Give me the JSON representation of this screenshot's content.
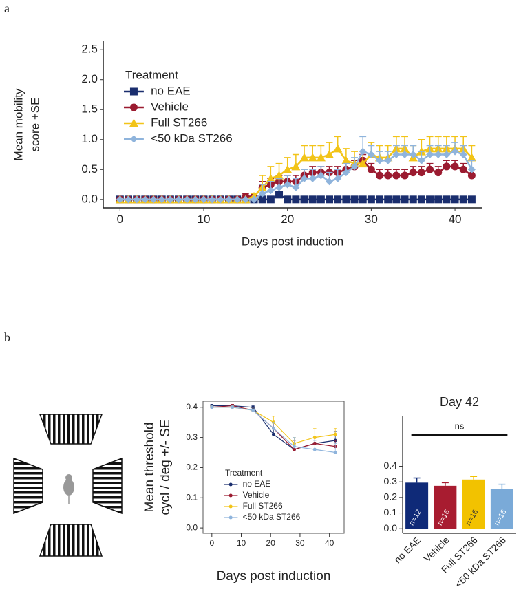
{
  "panel_labels": [
    "a",
    "b"
  ],
  "chart_data": [
    {
      "type": "line",
      "ylabel": [
        "Mean mobility",
        "score +SE"
      ],
      "xlabel": "Days post induction",
      "legend_title": "Treatment",
      "legend": "upper left",
      "grid": false,
      "xlim": [
        -2,
        43.2
      ],
      "ylim": [
        -0.14,
        2.64
      ],
      "xticks": [
        0,
        10,
        20,
        30,
        40
      ],
      "yticks": [
        {
          "value": 0,
          "label": "0.0"
        },
        {
          "value": 0.5,
          "label": "0.5"
        },
        {
          "value": 1,
          "label": "1.0"
        },
        {
          "value": 1.5,
          "label": "1.5"
        },
        {
          "value": 2,
          "label": "2.0"
        },
        {
          "value": 2.5,
          "label": "2.5"
        }
      ],
      "x": [
        0,
        1,
        2,
        3,
        4,
        5,
        6,
        7,
        8,
        9,
        10,
        11,
        12,
        13,
        14,
        15,
        16,
        17,
        18,
        19,
        20,
        21,
        22,
        23,
        24,
        25,
        26,
        27,
        28,
        29,
        30,
        31,
        32,
        33,
        34,
        35,
        36,
        37,
        38,
        39,
        40,
        41,
        42
      ],
      "series": [
        {
          "name": "no EAE",
          "color": "#1a2e6e",
          "marker": "square",
          "values": [
            0,
            0,
            0,
            0,
            0,
            0,
            0,
            0,
            0,
            0,
            0,
            0,
            0,
            0,
            0,
            0,
            0,
            0,
            0,
            0.08,
            0,
            0,
            0,
            0,
            0,
            0,
            0,
            0,
            0,
            0,
            0,
            0,
            0,
            0,
            0,
            0,
            0,
            0,
            0,
            0,
            0,
            0,
            0
          ],
          "errors": [
            0,
            0,
            0,
            0,
            0,
            0,
            0,
            0,
            0,
            0,
            0,
            0,
            0,
            0,
            0,
            0,
            0,
            0,
            0,
            0.05,
            0,
            0,
            0,
            0,
            0,
            0,
            0,
            0,
            0,
            0,
            0,
            0,
            0,
            0,
            0,
            0,
            0,
            0,
            0,
            0,
            0,
            0,
            0
          ]
        },
        {
          "name": "Vehicle",
          "color": "#9b1b30",
          "marker": "circle",
          "values": [
            0,
            0,
            0,
            0,
            0,
            0,
            0,
            0,
            0,
            0,
            0,
            0,
            0,
            0,
            0,
            0.05,
            0.05,
            0.2,
            0.25,
            0.3,
            0.3,
            0.3,
            0.4,
            0.45,
            0.45,
            0.45,
            0.45,
            0.5,
            0.55,
            0.65,
            0.5,
            0.4,
            0.4,
            0.4,
            0.4,
            0.45,
            0.45,
            0.5,
            0.45,
            0.55,
            0.55,
            0.5,
            0.4
          ],
          "errors": [
            0,
            0,
            0,
            0,
            0,
            0,
            0,
            0,
            0,
            0,
            0,
            0,
            0,
            0,
            0,
            0.05,
            0.05,
            0.1,
            0.1,
            0.1,
            0.1,
            0.1,
            0.1,
            0.1,
            0.1,
            0.1,
            0.1,
            0.1,
            0.1,
            0.1,
            0.1,
            0.1,
            0.1,
            0.1,
            0.1,
            0.1,
            0.1,
            0.1,
            0.1,
            0.1,
            0.1,
            0.1,
            0.1
          ]
        },
        {
          "name": "Full ST266",
          "color": "#f2c418",
          "marker": "triangle",
          "values": [
            0,
            0,
            0,
            0,
            0,
            0,
            0,
            0,
            0,
            0,
            0,
            0,
            0,
            0,
            0,
            0,
            0.05,
            0.2,
            0.35,
            0.4,
            0.5,
            0.55,
            0.7,
            0.7,
            0.7,
            0.75,
            0.85,
            0.65,
            0.6,
            0.6,
            0.75,
            0.7,
            0.7,
            0.85,
            0.85,
            0.7,
            0.8,
            0.85,
            0.85,
            0.85,
            0.85,
            0.85,
            0.7
          ],
          "errors": [
            0,
            0,
            0,
            0,
            0,
            0,
            0,
            0,
            0,
            0,
            0,
            0,
            0,
            0,
            0,
            0,
            0.05,
            0.2,
            0.2,
            0.2,
            0.2,
            0.2,
            0.2,
            0.2,
            0.2,
            0.2,
            0.2,
            0.2,
            0.2,
            0.2,
            0.2,
            0.2,
            0.2,
            0.2,
            0.2,
            0.2,
            0.2,
            0.2,
            0.2,
            0.2,
            0.2,
            0.2,
            0.2
          ]
        },
        {
          "name": "<50 kDa ST266",
          "color": "#8fb4dc",
          "marker": "diamond",
          "values": [
            0,
            0,
            0,
            0,
            0,
            0,
            0,
            0,
            0,
            0,
            0,
            0,
            0,
            0,
            0,
            0,
            0,
            0.1,
            0.15,
            0.2,
            0.25,
            0.2,
            0.35,
            0.35,
            0.4,
            0.3,
            0.35,
            0.45,
            0.55,
            0.8,
            0.75,
            0.65,
            0.65,
            0.75,
            0.75,
            0.75,
            0.65,
            0.75,
            0.75,
            0.75,
            0.8,
            0.75,
            0.5
          ],
          "errors": [
            0,
            0,
            0,
            0,
            0,
            0,
            0,
            0,
            0,
            0,
            0,
            0,
            0,
            0,
            0,
            0,
            0,
            0.15,
            0.15,
            0.15,
            0.15,
            0.15,
            0.15,
            0.15,
            0.15,
            0.15,
            0.15,
            0.15,
            0.15,
            0.25,
            0.15,
            0.15,
            0.15,
            0.15,
            0.15,
            0.15,
            0.15,
            0.15,
            0.15,
            0.15,
            0.15,
            0.15,
            0.15
          ]
        }
      ]
    },
    {
      "type": "line",
      "ylabel": [
        "Mean threshold",
        "cycl / deg +/- SE"
      ],
      "xlabel": "Days post induction",
      "legend_title": "Treatment",
      "legend": "lower left",
      "grid": false,
      "xlim": [
        -3,
        45
      ],
      "ylim": [
        -0.018,
        0.42
      ],
      "xticks": [
        0,
        10,
        20,
        30,
        40
      ],
      "yticks": [
        {
          "value": 0,
          "label": "0.0"
        },
        {
          "value": 0.1,
          "label": "0.1"
        },
        {
          "value": 0.2,
          "label": "0.2"
        },
        {
          "value": 0.3,
          "label": "0.3"
        },
        {
          "value": 0.4,
          "label": "0.4"
        }
      ],
      "x": [
        0,
        7,
        14,
        21,
        28,
        35,
        42
      ],
      "series": [
        {
          "name": "no EAE",
          "color": "#1a2e6e",
          "marker": "circle",
          "values": [
            0.405,
            0.405,
            0.4,
            0.31,
            0.26,
            0.28,
            0.29
          ],
          "errors": [
            0.005,
            0.005,
            0.005,
            0.02,
            0.02,
            0.02,
            0.03
          ]
        },
        {
          "name": "Vehicle",
          "color": "#9b1b30",
          "marker": "circle",
          "values": [
            0.4,
            0.405,
            0.39,
            0.33,
            0.26,
            0.28,
            0.27
          ],
          "errors": [
            0.005,
            0.005,
            0.01,
            0.02,
            0.03,
            0.02,
            0.02
          ]
        },
        {
          "name": "Full ST266",
          "color": "#f2c418",
          "marker": "circle",
          "values": [
            0.4,
            0.4,
            0.39,
            0.35,
            0.28,
            0.3,
            0.31
          ],
          "errors": [
            0.005,
            0.005,
            0.01,
            0.02,
            0.02,
            0.03,
            0.02
          ]
        },
        {
          "name": "<50 kDa ST266",
          "color": "#8fb4dc",
          "marker": "circle",
          "values": [
            0.4,
            0.4,
            0.39,
            0.33,
            0.27,
            0.26,
            0.25
          ],
          "errors": [
            0.005,
            0.005,
            0.01,
            0.02,
            0.03,
            0.03,
            0.03
          ]
        }
      ]
    },
    {
      "type": "bar",
      "title": "Day 42",
      "bracket_label": "ns",
      "ylim": [
        -0.03,
        0.72
      ],
      "yticks": [
        {
          "value": 0,
          "label": "0.0"
        },
        {
          "value": 0.1,
          "label": "0.1"
        },
        {
          "value": 0.2,
          "label": "0.2"
        },
        {
          "value": 0.3,
          "label": "0.3"
        },
        {
          "value": 0.4,
          "label": "0.4"
        }
      ],
      "categories": [
        "no EAE",
        "Vehicle",
        "Full ST266",
        "<50 kDa ST266"
      ],
      "colors": [
        "#0f2a78",
        "#a81c30",
        "#f2c200",
        "#7aaad8"
      ],
      "values": [
        0.295,
        0.275,
        0.315,
        0.255
      ],
      "errors": [
        0.03,
        0.02,
        0.02,
        0.03
      ],
      "annotations": [
        "n=12",
        "n=16",
        "n=16",
        "n=16"
      ]
    }
  ]
}
